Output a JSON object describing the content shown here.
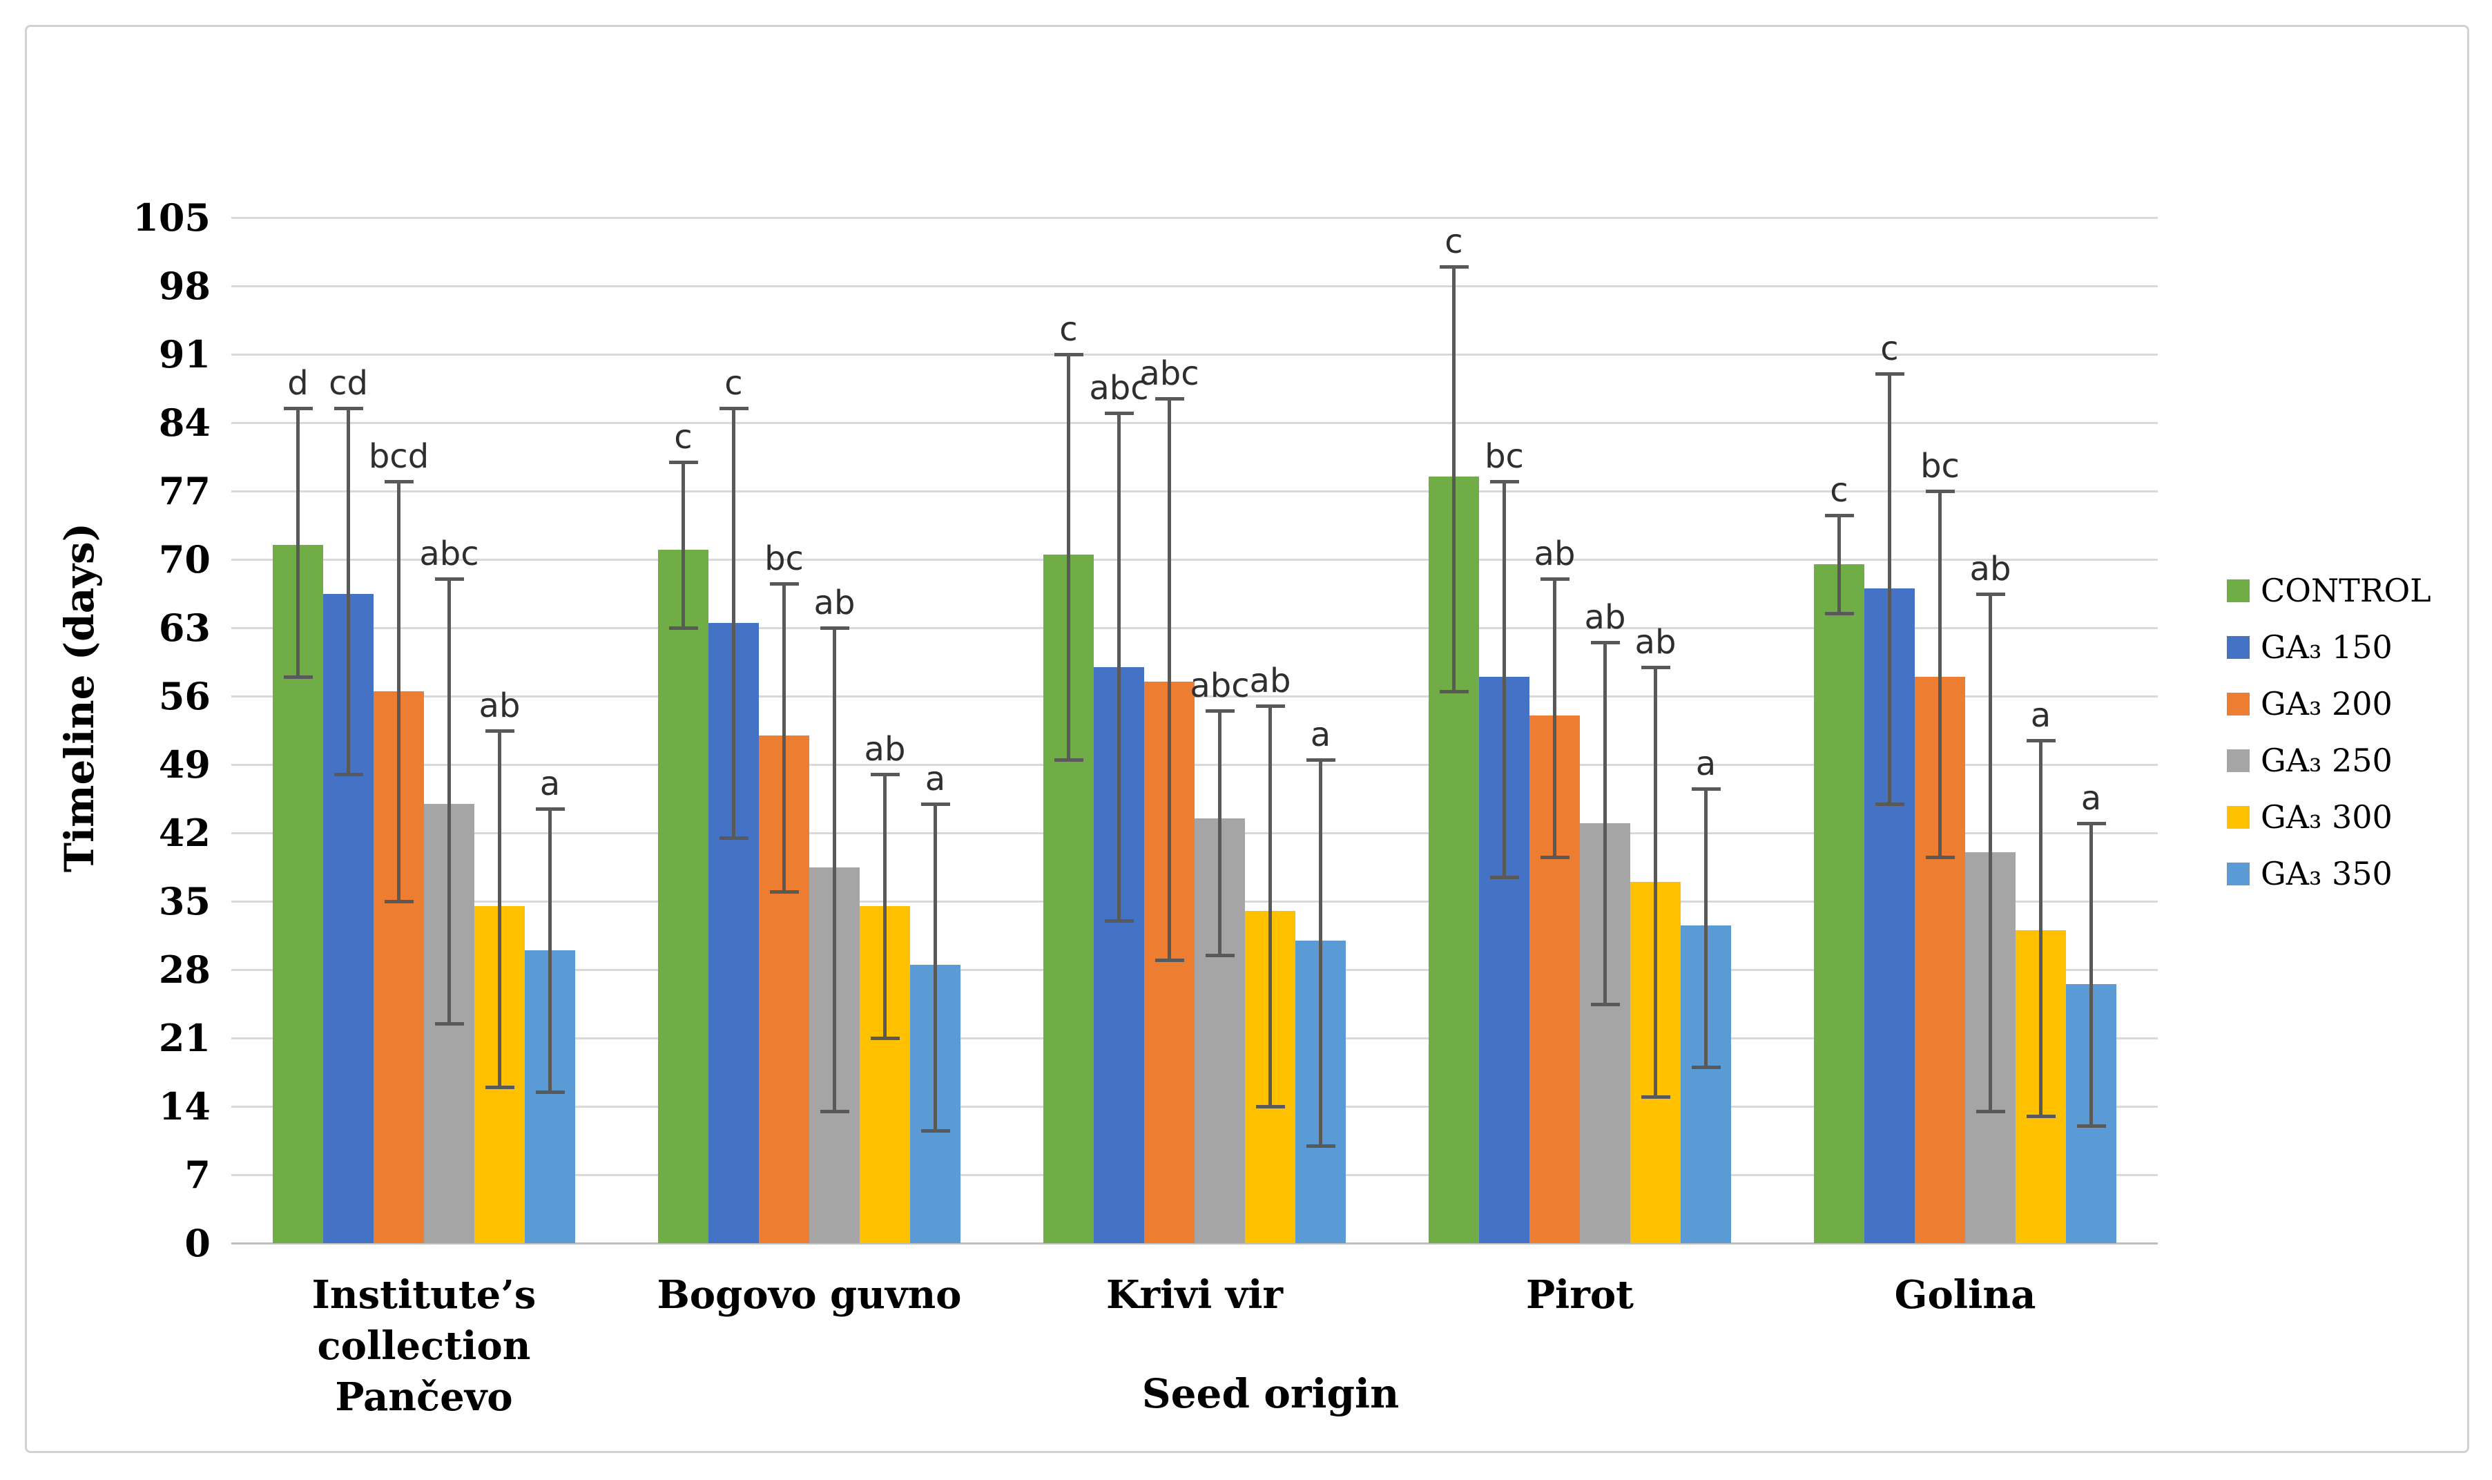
{
  "colors": {
    "gridline": "#d9d9d9",
    "axis_line": "#bfbfbf",
    "error_bar": "#595959",
    "frame_border": "#d2d2d2",
    "background": "#ffffff"
  },
  "chart_data": {
    "type": "bar",
    "title": "",
    "xlabel": "Seed origin",
    "ylabel": "Timeline (days)",
    "ylim": [
      0,
      105
    ],
    "yticks": [
      0,
      7,
      14,
      21,
      28,
      35,
      42,
      49,
      56,
      63,
      70,
      77,
      84,
      91,
      98,
      105
    ],
    "grid": true,
    "legend_position": "right",
    "error_bars": true,
    "categories": [
      "Institute’s\ncollection  Pančevo",
      "Bogovo guvno",
      "Krivi vir",
      "Pirot",
      "Golina"
    ],
    "series": [
      {
        "name": "CONTROL",
        "color": "#70AD47",
        "values": [
          71.5,
          71,
          70.5,
          78.5,
          69.5
        ],
        "err_low": [
          58,
          63,
          49.5,
          56.5,
          64.5
        ],
        "err_high": [
          85.5,
          80,
          91,
          100,
          74.5
        ],
        "letters": [
          "d",
          "c",
          "c",
          "c",
          "c"
        ]
      },
      {
        "name": "GA₃ 150",
        "color": "#4472C4",
        "values": [
          66.5,
          63.5,
          59,
          58,
          67
        ],
        "err_low": [
          48,
          41.5,
          33,
          37.5,
          45
        ],
        "err_high": [
          85.5,
          85.5,
          85,
          78,
          89
        ],
        "letters": [
          "cd",
          "c",
          "abc",
          "bc",
          "c"
        ]
      },
      {
        "name": "GA₃ 200",
        "color": "#ED7D31",
        "values": [
          56.5,
          52,
          57.5,
          54,
          58
        ],
        "err_low": [
          35,
          36,
          29,
          39.5,
          39.5
        ],
        "err_high": [
          78,
          67.5,
          86.5,
          68,
          77
        ],
        "letters": [
          "bcd",
          "bc",
          "abc",
          "ab",
          "bc"
        ]
      },
      {
        "name": "GA₃ 250",
        "color": "#A5A5A5",
        "values": [
          45,
          38.5,
          43.5,
          43,
          40
        ],
        "err_low": [
          22.5,
          13.5,
          29.5,
          24.5,
          13.5
        ],
        "err_high": [
          68,
          63,
          54.5,
          61.5,
          66.5
        ],
        "letters": [
          "abc",
          "ab",
          "abc",
          "ab",
          "ab"
        ]
      },
      {
        "name": "GA₃ 300",
        "color": "#FFC000",
        "values": [
          34.5,
          34.5,
          34,
          37,
          32
        ],
        "err_low": [
          16,
          21,
          14,
          15,
          13
        ],
        "err_high": [
          52.5,
          48,
          55,
          59,
          51.5
        ],
        "letters": [
          "ab",
          "ab",
          "ab",
          "ab",
          "a"
        ]
      },
      {
        "name": "GA₃ 350",
        "color": "#5B9BD5",
        "values": [
          30,
          28.5,
          31,
          32.5,
          26.5
        ],
        "err_low": [
          15.5,
          11.5,
          10,
          18,
          12
        ],
        "err_high": [
          44.5,
          45,
          49.5,
          46.5,
          43
        ],
        "letters": [
          "a",
          "a",
          "a",
          "a",
          "a"
        ]
      }
    ]
  }
}
